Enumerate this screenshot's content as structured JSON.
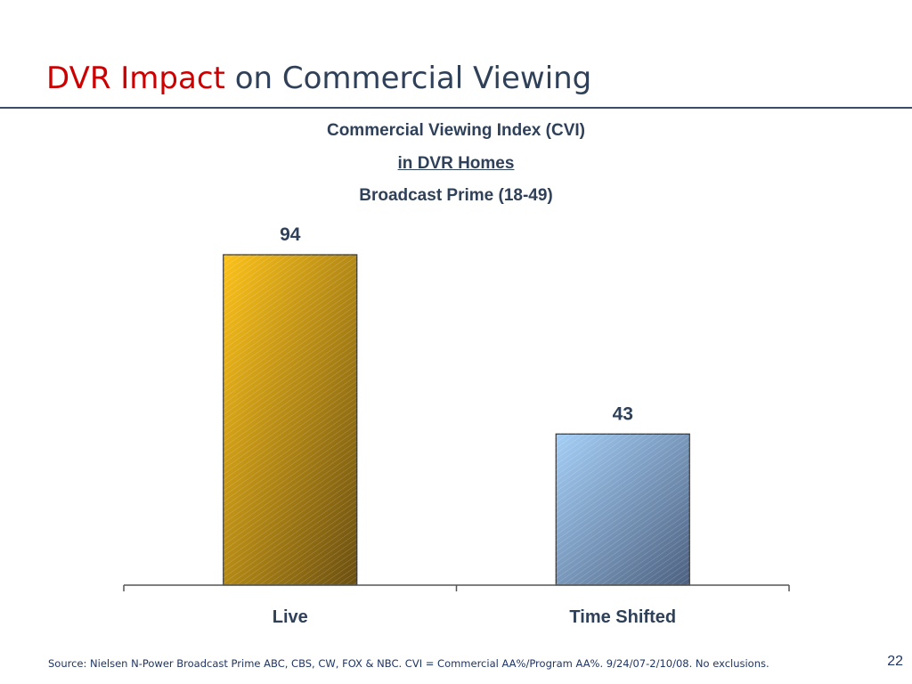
{
  "slide": {
    "title_accent": "DVR Impact",
    "title_rest": "on Commercial Viewing",
    "footer_source": "Source:  Nielsen N-Power Broadcast Prime ABC, CBS, CW, FOX & NBC. CVI = Commercial AA%/Program AA%. 9/24/07-2/10/08. No exclusions.",
    "page_number": "22"
  },
  "colors": {
    "title_accent": "#cc0000",
    "title_text": "#2f4059",
    "rule": "#3a4b63",
    "label_text": "#2f4059",
    "bar_live_light": "#fcc21a",
    "bar_live_dark": "#6b4f10",
    "bar_shifted_light": "#a5cff7",
    "bar_shifted_dark": "#4d6180"
  },
  "chart_data": {
    "type": "bar",
    "title": "Commercial Viewing Index (CVI)",
    "subtitle": "in DVR Homes",
    "subtitle2": "Broadcast Prime (18-49)",
    "categories": [
      "Live",
      "Time Shifted"
    ],
    "values": [
      94,
      43
    ],
    "data_labels": [
      "94",
      "43"
    ],
    "xlabel": "",
    "ylabel": "",
    "ylim": [
      0,
      94
    ],
    "grid": false,
    "legend": "none"
  }
}
